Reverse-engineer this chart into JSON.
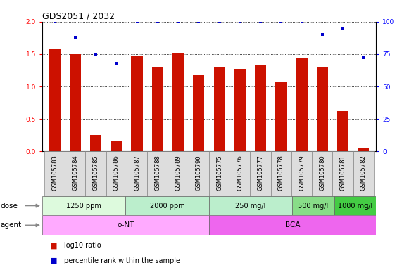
{
  "title": "GDS2051 / 2032",
  "samples": [
    "GSM105783",
    "GSM105784",
    "GSM105785",
    "GSM105786",
    "GSM105787",
    "GSM105788",
    "GSM105789",
    "GSM105790",
    "GSM105775",
    "GSM105776",
    "GSM105777",
    "GSM105778",
    "GSM105779",
    "GSM105780",
    "GSM105781",
    "GSM105782"
  ],
  "log10_ratio": [
    1.58,
    1.5,
    0.25,
    0.17,
    1.48,
    1.3,
    1.52,
    1.17,
    1.3,
    1.27,
    1.33,
    1.08,
    1.45,
    1.3,
    0.62,
    0.06
  ],
  "percentile_rank": [
    100,
    88,
    75,
    68,
    100,
    100,
    100,
    100,
    100,
    100,
    100,
    100,
    100,
    90,
    95,
    72
  ],
  "bar_color": "#cc1100",
  "dot_color": "#0000cc",
  "ylim_left": [
    0,
    2
  ],
  "ylim_right": [
    0,
    100
  ],
  "yticks_left": [
    0,
    0.5,
    1.0,
    1.5,
    2.0
  ],
  "yticks_right": [
    0,
    25,
    50,
    75,
    100
  ],
  "dose_groups": [
    {
      "label": "1250 ppm",
      "start": 0,
      "end": 4,
      "color": "#ddfadd"
    },
    {
      "label": "2000 ppm",
      "start": 4,
      "end": 8,
      "color": "#bbeecc"
    },
    {
      "label": "250 mg/l",
      "start": 8,
      "end": 12,
      "color": "#bbeecc"
    },
    {
      "label": "500 mg/l",
      "start": 12,
      "end": 14,
      "color": "#88dd88"
    },
    {
      "label": "1000 mg/l",
      "start": 14,
      "end": 16,
      "color": "#44cc44"
    }
  ],
  "agent_groups": [
    {
      "label": "o-NT",
      "start": 0,
      "end": 8,
      "color": "#ffaaff"
    },
    {
      "label": "BCA",
      "start": 8,
      "end": 16,
      "color": "#ee66ee"
    }
  ],
  "legend_items": [
    {
      "label": "log10 ratio",
      "color": "#cc1100"
    },
    {
      "label": "percentile rank within the sample",
      "color": "#0000cc"
    }
  ],
  "bg_color": "#ffffff",
  "title_fontsize": 9,
  "tick_fontsize": 6.5,
  "xtick_fontsize": 6,
  "dose_fontsize": 7,
  "agent_fontsize": 7.5,
  "label_row_fontsize": 7.5,
  "legend_fontsize": 7
}
